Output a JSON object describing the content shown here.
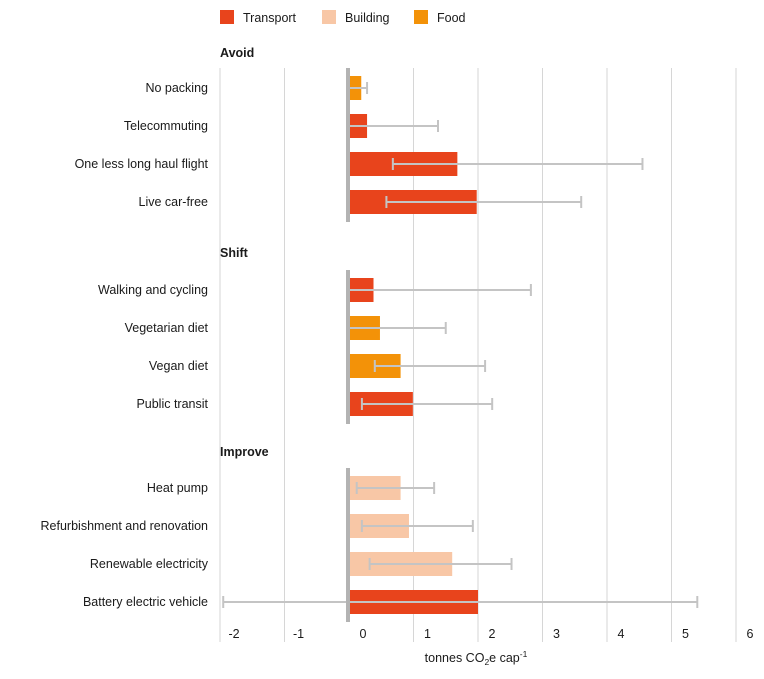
{
  "chart_data": {
    "type": "bar",
    "orientation": "horizontal",
    "xlabel": {
      "prefix": "tonnes CO",
      "sub": "2",
      "suffix": "e cap",
      "sup": "-1"
    },
    "xlim": [
      -2,
      6
    ],
    "xticks": [
      -2,
      -1,
      0,
      1,
      2,
      3,
      4,
      5,
      6
    ],
    "grid": "vertical",
    "legend_position": "top",
    "legend": [
      {
        "name": "Transport",
        "color": "#e8441c"
      },
      {
        "name": "Building",
        "color": "#f8c7a6"
      },
      {
        "name": "Food",
        "color": "#f39208"
      }
    ],
    "groups": [
      {
        "title": "Avoid",
        "items": [
          {
            "label": "No packing",
            "category": "Food",
            "value": 0.19,
            "err_low": 0.0,
            "err_high": 0.28
          },
          {
            "label": "Telecommuting",
            "category": "Transport",
            "value": 0.28,
            "err_low": 0.0,
            "err_high": 1.38
          },
          {
            "label": "One less long haul flight",
            "category": "Transport",
            "value": 1.68,
            "err_low": 0.68,
            "err_high": 4.55
          },
          {
            "label": "Live car-free",
            "category": "Transport",
            "value": 1.98,
            "err_low": 0.58,
            "err_high": 3.6
          }
        ]
      },
      {
        "title": "Shift",
        "items": [
          {
            "label": "Walking and cycling",
            "category": "Transport",
            "value": 0.38,
            "err_low": 0.0,
            "err_high": 2.82
          },
          {
            "label": "Vegetarian diet",
            "category": "Food",
            "value": 0.48,
            "err_low": 0.0,
            "err_high": 1.5
          },
          {
            "label": "Vegan diet",
            "category": "Food",
            "value": 0.8,
            "err_low": 0.4,
            "err_high": 2.11
          },
          {
            "label": "Public transit",
            "category": "Transport",
            "value": 0.99,
            "err_low": 0.2,
            "err_high": 2.22
          }
        ]
      },
      {
        "title": "Improve",
        "items": [
          {
            "label": "Heat pump",
            "category": "Building",
            "value": 0.8,
            "err_low": 0.12,
            "err_high": 1.32
          },
          {
            "label": "Refurbishment and renovation",
            "category": "Building",
            "value": 0.93,
            "err_low": 0.2,
            "err_high": 1.92
          },
          {
            "label": "Renewable electricity",
            "category": "Building",
            "value": 1.6,
            "err_low": 0.32,
            "err_high": 2.52
          },
          {
            "label": "Battery electric vehicle",
            "category": "Transport",
            "value": 2.0,
            "err_low": -1.95,
            "err_high": 5.4
          }
        ]
      }
    ]
  }
}
